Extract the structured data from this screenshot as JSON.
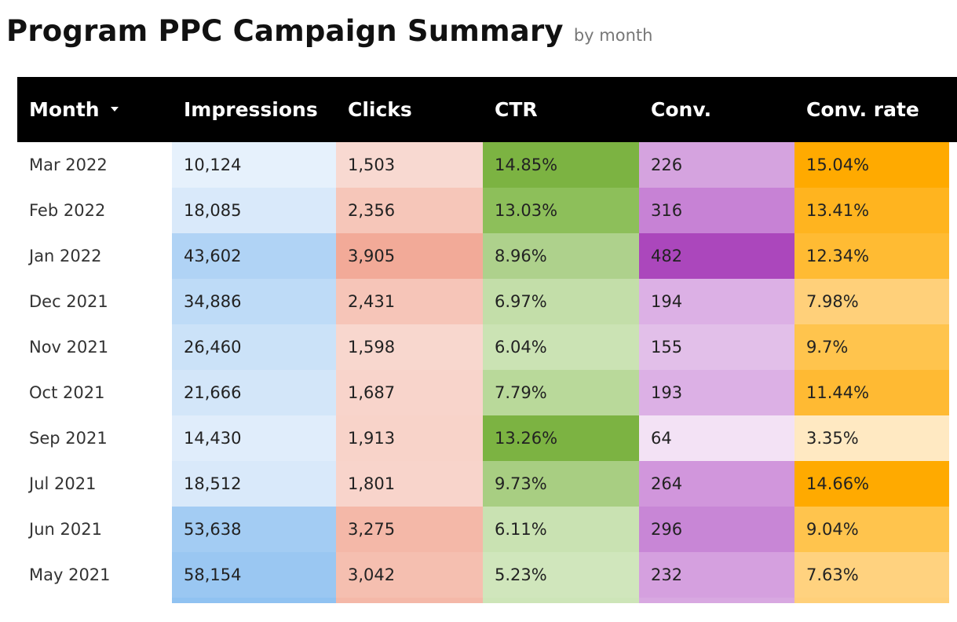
{
  "title": "Program PPC Campaign Summary",
  "subtitle": "by month",
  "columns": {
    "month": "Month",
    "impressions": "Impressions",
    "clicks": "Clicks",
    "ctr": "CTR",
    "conv": "Conv.",
    "conv_rate": "Conv. rate"
  },
  "sort_icon": "caret-down-icon",
  "rows": [
    {
      "month": "Mar 2022",
      "impressions": "10,124",
      "clicks": "1,503",
      "ctr": "14.85%",
      "conv": "226",
      "conv_rate": "15.04%",
      "colors": {
        "impressions": "#e6f1fc",
        "clicks": "#f8d9d1",
        "ctr": "#7cb342",
        "conv": "#d5a3df",
        "conv_rate": "#ffaa00"
      }
    },
    {
      "month": "Feb 2022",
      "impressions": "18,085",
      "clicks": "2,356",
      "ctr": "13.03%",
      "conv": "316",
      "conv_rate": "13.41%",
      "colors": {
        "impressions": "#d9e9fa",
        "clicks": "#f6c6b9",
        "ctr": "#8dbf5a",
        "conv": "#c782d5",
        "conv_rate": "#ffb41f"
      }
    },
    {
      "month": "Jan 2022",
      "impressions": "43,602",
      "clicks": "3,905",
      "ctr": "8.96%",
      "conv": "482",
      "conv_rate": "12.34%",
      "colors": {
        "impressions": "#b0d3f5",
        "clicks": "#f2aa98",
        "ctr": "#aed18c",
        "conv": "#ab47bc",
        "conv_rate": "#ffbb33"
      }
    },
    {
      "month": "Dec 2021",
      "impressions": "34,886",
      "clicks": "2,431",
      "ctr": "6.97%",
      "conv": "194",
      "conv_rate": "7.98%",
      "colors": {
        "impressions": "#bedbf7",
        "clicks": "#f6c5b8",
        "ctr": "#c3dea9",
        "conv": "#dcb0e5",
        "conv_rate": "#ffd07a"
      }
    },
    {
      "month": "Nov 2021",
      "impressions": "26,460",
      "clicks": "1,598",
      "ctr": "6.04%",
      "conv": "155",
      "conv_rate": "9.7%",
      "colors": {
        "impressions": "#cbe2f8",
        "clicks": "#f8d7ce",
        "ctr": "#cbe3b4",
        "conv": "#e2bfe9",
        "conv_rate": "#ffc44d"
      }
    },
    {
      "month": "Oct 2021",
      "impressions": "21,666",
      "clicks": "1,687",
      "ctr": "7.79%",
      "conv": "193",
      "conv_rate": "11.44%",
      "colors": {
        "impressions": "#d3e6f9",
        "clicks": "#f8d4cb",
        "ctr": "#b9d99a",
        "conv": "#dcb0e5",
        "conv_rate": "#ffba33"
      }
    },
    {
      "month": "Sep 2021",
      "impressions": "14,430",
      "clicks": "1,913",
      "ctr": "13.26%",
      "conv": "64",
      "conv_rate": "3.35%",
      "colors": {
        "impressions": "#e0edfb",
        "clicks": "#f8d3c9",
        "ctr": "#7cb342",
        "conv": "#f3e2f5",
        "conv_rate": "#ffe9c2"
      }
    },
    {
      "month": "Jul 2021",
      "impressions": "18,512",
      "clicks": "1,801",
      "ctr": "9.73%",
      "conv": "264",
      "conv_rate": "14.66%",
      "colors": {
        "impressions": "#d9e9fa",
        "clicks": "#f8d4cb",
        "ctr": "#a8ce82",
        "conv": "#d196dc",
        "conv_rate": "#ffaa00"
      }
    },
    {
      "month": "Jun 2021",
      "impressions": "53,638",
      "clicks": "3,275",
      "ctr": "6.11%",
      "conv": "296",
      "conv_rate": "9.04%",
      "colors": {
        "impressions": "#a3ccf3",
        "clicks": "#f4b8a8",
        "ctr": "#c9e2b2",
        "conv": "#c886d6",
        "conv_rate": "#ffc44d"
      }
    },
    {
      "month": "May 2021",
      "impressions": "58,154",
      "clicks": "3,042",
      "ctr": "5.23%",
      "conv": "232",
      "conv_rate": "7.63%",
      "colors": {
        "impressions": "#9ac7f2",
        "clicks": "#f5bfb0",
        "ctr": "#d0e6bc",
        "conv": "#d5a0df",
        "conv_rate": "#ffd27f"
      }
    },
    {
      "month": "",
      "impressions": "",
      "clicks": "",
      "ctr": "",
      "conv": "",
      "conv_rate": "",
      "colors": {
        "impressions": "#90c2f1",
        "clicks": "#f4b8a8",
        "ctr": "#cde5b8",
        "conv": "#d8a8e1",
        "conv_rate": "#ffd07a"
      }
    }
  ]
}
